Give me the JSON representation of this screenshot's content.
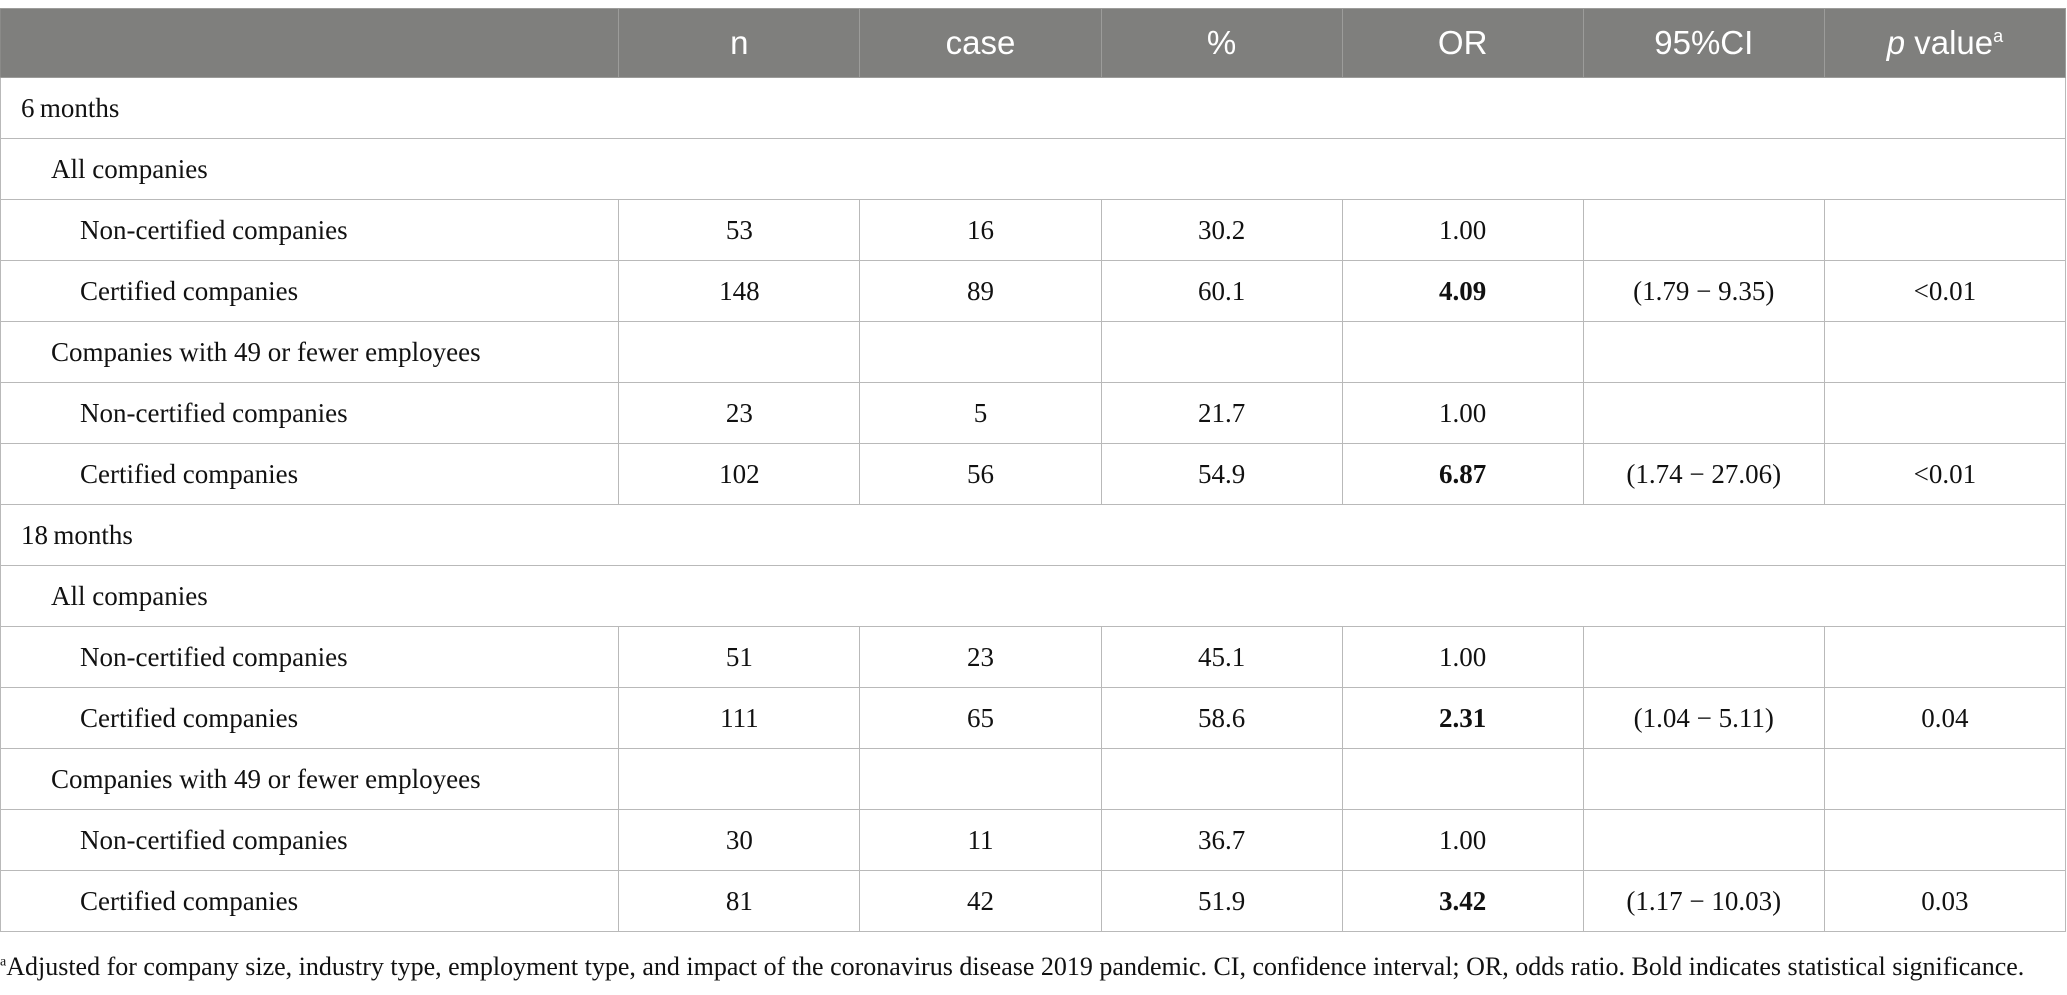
{
  "header": {
    "col0": "",
    "n": "n",
    "case": "case",
    "pct": "%",
    "or": "OR",
    "ci": "95%CI",
    "p_italic": "p",
    "p_rest": " value",
    "p_sup": "a"
  },
  "sections": [
    {
      "label": "6 months",
      "groups": [
        {
          "label": "All companies",
          "rows": [
            {
              "label": "Non-certified companies",
              "n": "53",
              "case": "16",
              "pct": "30.2",
              "or": "1.00",
              "or_bold": false,
              "ci": "",
              "p": ""
            },
            {
              "label": "Certified companies",
              "n": "148",
              "case": "89",
              "pct": "60.1",
              "or": "4.09",
              "or_bold": true,
              "ci": "(1.79 − 9.35)",
              "p": "<0.01"
            }
          ]
        },
        {
          "label": "Companies with 49 or fewer employees",
          "rows": [
            {
              "label": "Non-certified companies",
              "n": "23",
              "case": "5",
              "pct": "21.7",
              "or": "1.00",
              "or_bold": false,
              "ci": "",
              "p": ""
            },
            {
              "label": "Certified companies",
              "n": "102",
              "case": "56",
              "pct": "54.9",
              "or": "6.87",
              "or_bold": true,
              "ci": "(1.74 − 27.06)",
              "p": "<0.01"
            }
          ]
        }
      ]
    },
    {
      "label": "18 months",
      "groups": [
        {
          "label": "All companies",
          "rows": [
            {
              "label": "Non-certified companies",
              "n": "51",
              "case": "23",
              "pct": "45.1",
              "or": "1.00",
              "or_bold": false,
              "ci": "",
              "p": ""
            },
            {
              "label": "Certified companies",
              "n": "111",
              "case": "65",
              "pct": "58.6",
              "or": "2.31",
              "or_bold": true,
              "ci": "(1.04 − 5.11)",
              "p": "0.04"
            }
          ]
        },
        {
          "label": "Companies with 49 or fewer employees",
          "rows": [
            {
              "label": "Non-certified companies",
              "n": "30",
              "case": "11",
              "pct": "36.7",
              "or": "1.00",
              "or_bold": false,
              "ci": "",
              "p": ""
            },
            {
              "label": "Certified companies",
              "n": "81",
              "case": "42",
              "pct": "51.9",
              "or": "3.42",
              "or_bold": true,
              "ci": "(1.17 − 10.03)",
              "p": "0.03"
            }
          ]
        }
      ]
    }
  ],
  "footnote": {
    "sup": "a",
    "text": "Adjusted for company size, industry type, employment type, and impact of the coronavirus disease 2019 pandemic. CI, confidence interval; OR, odds ratio. Bold indicates statistical significance."
  }
}
